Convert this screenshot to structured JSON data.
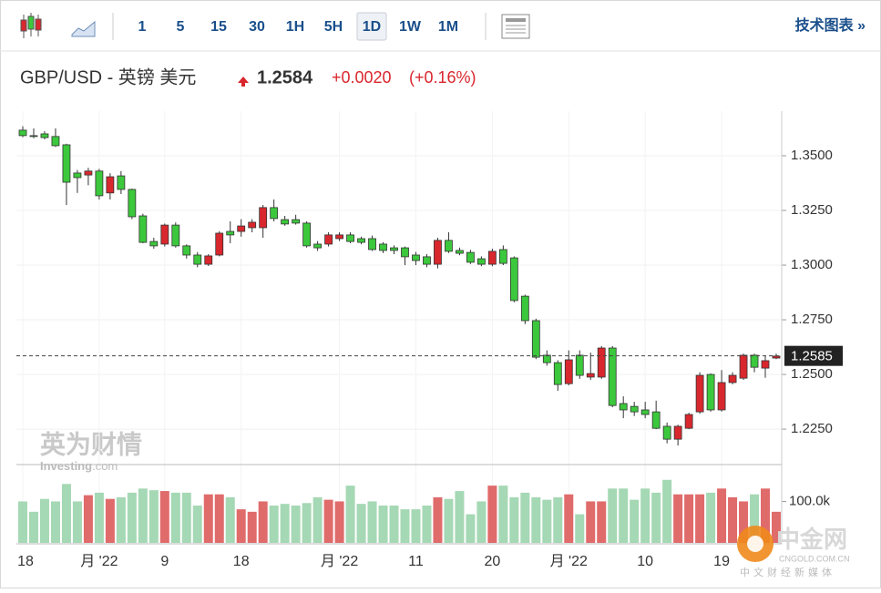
{
  "toolbar": {
    "intervals": [
      "1",
      "5",
      "15",
      "30",
      "1H",
      "5H",
      "1D",
      "1W",
      "1M"
    ],
    "selected": 6,
    "tech_chart": "技术图表 »"
  },
  "header": {
    "symbol": "GBP/USD - 英镑 美元",
    "price": "1.2584",
    "change": "+0.0020",
    "change_pct": "(+0.16%)"
  },
  "watermark": {
    "brand": "英为财情",
    "site": "Investing",
    "site_suffix": ".com",
    "logo": "中金网",
    "logo_url": "CNGOLD.COM.CN",
    "logo_tag": "中文财经新媒体"
  },
  "chart_data": {
    "type": "candlestick",
    "up_color": "#d9272e",
    "down_color": "#3cc83c",
    "vol_up_color": "#e06b6b",
    "vol_down_color": "#a5d8b4",
    "ylim": [
      1.2088,
      1.3704
    ],
    "yticks": [
      {
        "value": 1.35,
        "label": "1.3500"
      },
      {
        "value": 1.325,
        "label": "1.3250"
      },
      {
        "value": 1.3,
        "label": "1.3000"
      },
      {
        "value": 1.275,
        "label": "1.2750"
      },
      {
        "value": 1.25,
        "label": "1.2500"
      },
      {
        "value": 1.225,
        "label": "1.2250"
      }
    ],
    "current_price": 1.2585,
    "vol_lim": [
      0,
      180000
    ],
    "vol_ticks": [
      {
        "value": 100000,
        "label": "100.0k"
      }
    ],
    "categories": [
      "18",
      null,
      null,
      null,
      null,
      null,
      null,
      "月 '22",
      null,
      null,
      null,
      null,
      null,
      "9",
      null,
      null,
      null,
      null,
      null,
      null,
      "18",
      null,
      null,
      null,
      null,
      null,
      null,
      null,
      null,
      "月 '22",
      null,
      null,
      null,
      null,
      null,
      null,
      "11",
      null,
      null,
      null,
      null,
      null,
      null,
      "20",
      null,
      null,
      null,
      null,
      null,
      null,
      "月 '22",
      null,
      null,
      null,
      null,
      null,
      null,
      "10",
      null,
      null,
      null,
      null,
      null,
      null,
      "19",
      null,
      null,
      null,
      null,
      null
    ],
    "open": [
      1.3617,
      1.3592,
      1.36,
      1.3588,
      1.355,
      1.3421,
      1.3412,
      1.343,
      1.333,
      1.3408,
      1.3346,
      1.3225,
      1.3108,
      1.3096,
      1.3183,
      1.3088,
      1.3046,
      1.3004,
      1.3046,
      1.3154,
      1.3154,
      1.3171,
      1.3171,
      1.3263,
      1.3208,
      1.3208,
      1.3192,
      1.3096,
      1.3096,
      1.3121,
      1.3138,
      1.3121,
      1.3121,
      1.3096,
      1.3079,
      1.3079,
      1.3046,
      1.3038,
      1.3004,
      1.3113,
      1.3067,
      1.3058,
      1.3029,
      1.3004,
      1.3071,
      1.3033,
      1.2858,
      1.2746,
      1.2588,
      1.2554,
      1.2458,
      1.2588,
      1.2488,
      1.2488,
      1.2621,
      1.2367,
      1.2354,
      1.2338,
      1.2329,
      1.2263,
      1.2204,
      1.2254,
      1.2329,
      1.25,
      1.2338,
      1.2463,
      1.2483,
      1.2588,
      1.2529,
      1.2575
    ],
    "high": [
      1.3635,
      1.3625,
      1.3612,
      1.3625,
      1.3555,
      1.3435,
      1.3445,
      1.344,
      1.342,
      1.343,
      1.335,
      1.3235,
      1.3125,
      1.319,
      1.3195,
      1.3095,
      1.306,
      1.305,
      1.3155,
      1.32,
      1.321,
      1.321,
      1.3275,
      1.33,
      1.3225,
      1.323,
      1.32,
      1.311,
      1.315,
      1.315,
      1.315,
      1.313,
      1.3135,
      1.3105,
      1.309,
      1.3085,
      1.306,
      1.305,
      1.3125,
      1.315,
      1.308,
      1.307,
      1.304,
      1.3075,
      1.309,
      1.304,
      1.2865,
      1.2755,
      1.261,
      1.2565,
      1.261,
      1.261,
      1.26,
      1.263,
      1.263,
      1.24,
      1.2375,
      1.2375,
      1.238,
      1.228,
      1.227,
      1.2325,
      1.251,
      1.2505,
      1.252,
      1.251,
      1.2595,
      1.2595,
      1.2585,
      1.2595
    ],
    "low": [
      1.3585,
      1.358,
      1.3575,
      1.354,
      1.3275,
      1.333,
      1.3365,
      1.33,
      1.33,
      1.3325,
      1.321,
      1.31,
      1.3075,
      1.3085,
      1.308,
      1.303,
      1.299,
      1.2996,
      1.304,
      1.31,
      1.313,
      1.315,
      1.3125,
      1.32,
      1.318,
      1.3185,
      1.308,
      1.3065,
      1.3085,
      1.311,
      1.31,
      1.3095,
      1.3065,
      1.3055,
      1.305,
      1.3,
      1.3,
      1.299,
      1.2985,
      1.3055,
      1.3045,
      1.3005,
      1.2995,
      1.2995,
      1.3,
      1.283,
      1.273,
      1.257,
      1.254,
      1.2425,
      1.245,
      1.248,
      1.2475,
      1.248,
      1.235,
      1.23,
      1.231,
      1.23,
      1.225,
      1.2185,
      1.2175,
      1.225,
      1.232,
      1.233,
      1.233,
      1.2455,
      1.2475,
      1.251,
      1.2485,
      1.257
    ],
    "close": [
      1.3592,
      1.3588,
      1.3583,
      1.3546,
      1.3379,
      1.34,
      1.343,
      1.3317,
      1.3404,
      1.3346,
      1.3221,
      1.3104,
      1.3088,
      1.3183,
      1.3088,
      1.3046,
      1.3004,
      1.3042,
      1.3146,
      1.3138,
      1.3179,
      1.3196,
      1.3263,
      1.3213,
      1.3188,
      1.3192,
      1.3088,
      1.3079,
      1.3138,
      1.3138,
      1.3108,
      1.3104,
      1.3071,
      1.3067,
      1.3067,
      1.3038,
      1.3021,
      1.3004,
      1.3113,
      1.3063,
      1.3054,
      1.3013,
      1.3004,
      1.3063,
      1.3008,
      1.2838,
      1.2746,
      1.2579,
      1.2554,
      1.2454,
      1.2567,
      1.2496,
      1.2504,
      1.2621,
      1.2358,
      1.2338,
      1.2329,
      1.2317,
      1.2254,
      1.2204,
      1.2263,
      1.2317,
      1.2496,
      1.2338,
      1.2463,
      1.2496,
      1.2588,
      1.2533,
      1.2563,
      1.2584
    ],
    "volume": [
      100000,
      75000,
      106000,
      100000,
      142000,
      100000,
      115000,
      121000,
      106000,
      110000,
      121000,
      131000,
      127000,
      125000,
      121000,
      121000,
      90000,
      117000,
      117000,
      110000,
      81000,
      75000,
      100000,
      90000,
      94000,
      90000,
      96000,
      110000,
      104000,
      100000,
      138000,
      94000,
      100000,
      90000,
      90000,
      81000,
      81000,
      90000,
      110000,
      106000,
      125000,
      69000,
      100000,
      138000,
      138000,
      110000,
      121000,
      110000,
      104000,
      110000,
      117000,
      69000,
      100000,
      100000,
      131000,
      131000,
      104000,
      131000,
      121000,
      152000,
      117000,
      117000,
      117000,
      121000,
      131000,
      110000,
      100000,
      117000,
      131000,
      75000
    ]
  }
}
